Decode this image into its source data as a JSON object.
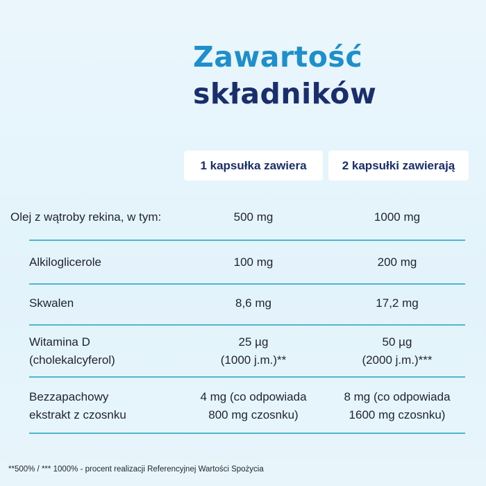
{
  "title": {
    "line1": "Zawartość",
    "line2": "składników"
  },
  "columns": [
    "1 kapsułka zawiera",
    "2 kapsułki zawierają"
  ],
  "rows": [
    {
      "label": [
        "Olej z wątroby rekina, w tym:"
      ],
      "c1": [
        "500 mg"
      ],
      "c2": [
        "1000 mg"
      ]
    },
    {
      "label": [
        "Alkiloglicerole"
      ],
      "c1": [
        "100 mg"
      ],
      "c2": [
        "200 mg"
      ]
    },
    {
      "label": [
        "Skwalen"
      ],
      "c1": [
        "8,6 mg"
      ],
      "c2": [
        "17,2 mg"
      ]
    },
    {
      "label": [
        "Witamina D",
        "(cholekalcyferol)"
      ],
      "c1": [
        "25 µg",
        "(1000 j.m.)**"
      ],
      "c2": [
        "50 µg",
        "(2000 j.m.)***"
      ]
    },
    {
      "label": [
        "Bezzapachowy",
        "ekstrakt z czosnku"
      ],
      "c1": [
        "4 mg (co odpowiada",
        "800 mg czosnku)"
      ],
      "c2": [
        "8 mg (co odpowiada",
        "1600 mg czosnku)"
      ]
    }
  ],
  "footnote": "**500% / *** 1000% - procent realizacji Referencyjnej Wartości Spożycia",
  "colors": {
    "title_light": "#1e8fcb",
    "title_dark": "#1a2e6b",
    "divider": "#4fb7c9"
  }
}
